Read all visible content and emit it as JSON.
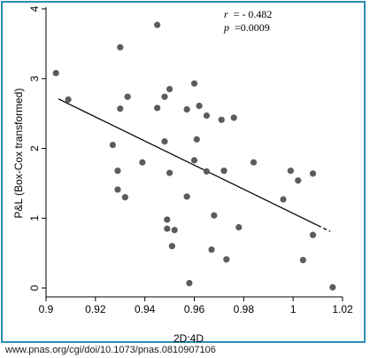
{
  "chart_data": {
    "type": "scatter",
    "xlabel": "2D:4D",
    "ylabel": "P&L (Box-Cox transformed)",
    "xlim": [
      0.9,
      1.02
    ],
    "ylim": [
      0,
      4
    ],
    "xticks": [
      "0.9",
      "0.92",
      "0.94",
      "0.96",
      "0.98",
      "1",
      "1.02"
    ],
    "yticks": [
      "0",
      "1",
      "2",
      "3",
      "4"
    ],
    "grid": false,
    "annotations": {
      "r_label": "r",
      "r_value": "= - 0.482",
      "p_label": "p",
      "p_value": "=0.0009"
    },
    "points": [
      {
        "x": 0.904,
        "y": 3.08
      },
      {
        "x": 0.909,
        "y": 2.7
      },
      {
        "x": 0.927,
        "y": 2.05
      },
      {
        "x": 0.929,
        "y": 1.68
      },
      {
        "x": 0.929,
        "y": 1.41
      },
      {
        "x": 0.93,
        "y": 3.45
      },
      {
        "x": 0.93,
        "y": 2.57
      },
      {
        "x": 0.932,
        "y": 1.3
      },
      {
        "x": 0.933,
        "y": 2.74
      },
      {
        "x": 0.939,
        "y": 1.8
      },
      {
        "x": 0.945,
        "y": 3.77
      },
      {
        "x": 0.945,
        "y": 2.58
      },
      {
        "x": 0.948,
        "y": 2.74
      },
      {
        "x": 0.948,
        "y": 2.1
      },
      {
        "x": 0.949,
        "y": 0.98
      },
      {
        "x": 0.949,
        "y": 0.85
      },
      {
        "x": 0.95,
        "y": 2.85
      },
      {
        "x": 0.95,
        "y": 1.65
      },
      {
        "x": 0.951,
        "y": 0.6
      },
      {
        "x": 0.952,
        "y": 0.83
      },
      {
        "x": 0.957,
        "y": 2.56
      },
      {
        "x": 0.957,
        "y": 1.31
      },
      {
        "x": 0.958,
        "y": 0.07
      },
      {
        "x": 0.96,
        "y": 2.93
      },
      {
        "x": 0.96,
        "y": 1.83
      },
      {
        "x": 0.961,
        "y": 2.13
      },
      {
        "x": 0.962,
        "y": 2.61
      },
      {
        "x": 0.965,
        "y": 2.47
      },
      {
        "x": 0.965,
        "y": 1.67
      },
      {
        "x": 0.967,
        "y": 0.55
      },
      {
        "x": 0.968,
        "y": 1.04
      },
      {
        "x": 0.971,
        "y": 2.41
      },
      {
        "x": 0.972,
        "y": 1.68
      },
      {
        "x": 0.973,
        "y": 0.41
      },
      {
        "x": 0.976,
        "y": 2.44
      },
      {
        "x": 0.978,
        "y": 0.87
      },
      {
        "x": 0.984,
        "y": 1.8
      },
      {
        "x": 0.996,
        "y": 1.27
      },
      {
        "x": 0.999,
        "y": 1.68
      },
      {
        "x": 1.002,
        "y": 1.54
      },
      {
        "x": 1.004,
        "y": 0.4
      },
      {
        "x": 1.008,
        "y": 1.64
      },
      {
        "x": 1.008,
        "y": 0.76
      },
      {
        "x": 1.016,
        "y": 0.01
      }
    ],
    "fit_line": {
      "x": [
        0.905,
        1.015
      ],
      "y": [
        2.71,
        0.81
      ],
      "dashed_segment_from_x": 1.01
    }
  },
  "source": {
    "url_text": "www.pnas.org/cgi/doi/10.1073/pnas.0810907106"
  }
}
